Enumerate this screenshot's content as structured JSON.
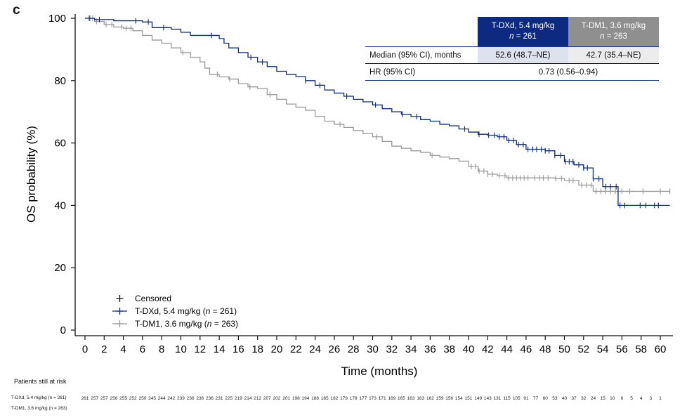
{
  "panel_label": "c",
  "chart_data": {
    "type": "line",
    "step": true,
    "xlabel": "Time (months)",
    "ylabel": "OS probability (%)",
    "xlim": [
      0,
      61
    ],
    "ylim": [
      0,
      100
    ],
    "x_ticks": [
      0,
      2,
      4,
      6,
      8,
      10,
      12,
      14,
      16,
      18,
      20,
      22,
      24,
      26,
      28,
      30,
      32,
      34,
      36,
      38,
      40,
      42,
      44,
      46,
      48,
      50,
      52,
      54,
      56,
      58,
      60
    ],
    "y_ticks": [
      0,
      20,
      40,
      60,
      80,
      100
    ],
    "grid": false,
    "legend_placement": "bottom-left",
    "legend": {
      "censored": "Censored"
    },
    "series": [
      {
        "name": "T-DXd, 5.4 mg/kg (n = 261)",
        "color": "#0d2a80",
        "points": [
          [
            0,
            100
          ],
          [
            1,
            99.6
          ],
          [
            3,
            99.2
          ],
          [
            6,
            98.8
          ],
          [
            7,
            97
          ],
          [
            9,
            96.5
          ],
          [
            10,
            95.5
          ],
          [
            11,
            94.5
          ],
          [
            14,
            93.5
          ],
          [
            14.5,
            92
          ],
          [
            15,
            90.5
          ],
          [
            16,
            89
          ],
          [
            17,
            87.5
          ],
          [
            18,
            86
          ],
          [
            19,
            84.5
          ],
          [
            20,
            83
          ],
          [
            21,
            82
          ],
          [
            22,
            81.3
          ],
          [
            23,
            80
          ],
          [
            24,
            78.5
          ],
          [
            25,
            77
          ],
          [
            26,
            76
          ],
          [
            27,
            75
          ],
          [
            28,
            74
          ],
          [
            29,
            73.2
          ],
          [
            30,
            72.2
          ],
          [
            31,
            71
          ],
          [
            32,
            70
          ],
          [
            33,
            69.2
          ],
          [
            34,
            68.5
          ],
          [
            35,
            67.5
          ],
          [
            36,
            67
          ],
          [
            37,
            66
          ],
          [
            38,
            65.5
          ],
          [
            39,
            64.5
          ],
          [
            40,
            63.5
          ],
          [
            41,
            62.8
          ],
          [
            42,
            62.5
          ],
          [
            43,
            62
          ],
          [
            44,
            60.8
          ],
          [
            45,
            59.5
          ],
          [
            46,
            58
          ],
          [
            48,
            57.5
          ],
          [
            49,
            56
          ],
          [
            50,
            54
          ],
          [
            51,
            53
          ],
          [
            52,
            52
          ],
          [
            53,
            48.5
          ],
          [
            54,
            46
          ],
          [
            55.6,
            40
          ],
          [
            61,
            40
          ]
        ],
        "censored": [
          0.5,
          1.5,
          5.3,
          6.6,
          8.2,
          13.2,
          17.3,
          18.5,
          23,
          24.5,
          27.3,
          30.3,
          33.1,
          34.6,
          39.6,
          41.1,
          42.1,
          42.7,
          43.2,
          43.7,
          44.2,
          44.7,
          45.2,
          45.7,
          46.2,
          46.7,
          47.1,
          47.6,
          48,
          48.4,
          49,
          49.6,
          50.1,
          50.5,
          50.9,
          51.5,
          52,
          52.4,
          53,
          53.6,
          54.3,
          54.8,
          55.4,
          55.8,
          56.3,
          57.9,
          58.5,
          59.4,
          59.8
        ],
        "at_risk": [
          261,
          257,
          257,
          256,
          255,
          252,
          250,
          245,
          244,
          242,
          239,
          236,
          236,
          236,
          231,
          225,
          219,
          214,
          212,
          207,
          202,
          201,
          198,
          194,
          188,
          185,
          182,
          179,
          178,
          177,
          173,
          171,
          169,
          165,
          163,
          163,
          162,
          159,
          156,
          154,
          151,
          149,
          143,
          131,
          115,
          105,
          91,
          77,
          60,
          53,
          40,
          37,
          32,
          24,
          15,
          10,
          6,
          5,
          4,
          3,
          1
        ]
      },
      {
        "name": "T-DM1, 3.6 mg/kg (n = 263)",
        "color": "#999999",
        "points": [
          [
            0,
            100
          ],
          [
            1,
            99
          ],
          [
            2,
            98
          ],
          [
            3,
            97.2
          ],
          [
            4,
            96.8
          ],
          [
            5,
            96
          ],
          [
            6,
            94.5
          ],
          [
            7,
            93
          ],
          [
            8,
            92
          ],
          [
            9,
            90.5
          ],
          [
            10,
            89
          ],
          [
            11,
            87.5
          ],
          [
            12,
            86
          ],
          [
            12.5,
            84
          ],
          [
            13,
            82
          ],
          [
            14,
            81.2
          ],
          [
            15,
            80.5
          ],
          [
            16,
            79
          ],
          [
            17,
            78
          ],
          [
            18,
            77.5
          ],
          [
            19,
            75.5
          ],
          [
            20,
            74
          ],
          [
            21,
            72.5
          ],
          [
            22,
            71.5
          ],
          [
            23,
            70.5
          ],
          [
            24,
            68.5
          ],
          [
            25,
            67
          ],
          [
            26,
            66
          ],
          [
            27,
            65
          ],
          [
            28,
            64
          ],
          [
            29,
            63
          ],
          [
            30,
            62
          ],
          [
            31,
            60.5
          ],
          [
            32,
            59
          ],
          [
            33,
            58.3
          ],
          [
            34,
            57.5
          ],
          [
            35,
            57
          ],
          [
            36,
            56
          ],
          [
            37,
            55.5
          ],
          [
            38,
            55
          ],
          [
            39,
            54.2
          ],
          [
            40,
            52.5
          ],
          [
            41,
            51
          ],
          [
            42,
            50
          ],
          [
            43,
            49.5
          ],
          [
            44,
            48.8
          ],
          [
            49,
            48.6
          ],
          [
            50,
            48
          ],
          [
            51.5,
            46.5
          ],
          [
            53,
            44.5
          ],
          [
            61,
            44.5
          ]
        ],
        "censored": [
          0.4,
          0.8,
          1.2,
          2.2,
          2.8,
          3.8,
          4.3,
          4.8,
          10.2,
          13.8,
          15.1,
          17.2,
          19.3,
          26.6,
          30.4,
          36.2,
          40.3,
          40.7,
          41.1,
          41.6,
          42,
          42.5,
          43.2,
          43.8,
          44.2,
          44.6,
          45,
          45.4,
          45.8,
          46.2,
          46.9,
          47.4,
          47.8,
          48.3,
          49.1,
          49.7,
          50.5,
          50.9,
          51.8,
          52.3,
          52.8,
          53.3,
          53.8,
          54.3,
          54.8,
          55.3,
          56,
          56.8,
          58.2,
          60,
          61
        ]
      }
    ],
    "summary_table": {
      "columns": [
        {
          "label": "T-DXd, 5.4 mg/kg",
          "n_label": "n",
          "n_value": "= 261",
          "color": "#0d2a80",
          "cell_color": "#dde2ee"
        },
        {
          "label": "T-DM1, 3.6 mg/kg",
          "n_label": "n",
          "n_value": "= 263",
          "color": "#8f8f8f",
          "cell_color": "#ececec"
        }
      ],
      "median_label": "Median (95% CI), months",
      "median_values": [
        "52.6 (48.7–NE)",
        "42.7 (35.4–NE)"
      ],
      "hr_label": "HR (95% CI)",
      "hr_value": "0.73 (0.56–0.94)"
    },
    "at_risk_title": "Patients still at risk",
    "at_risk_labels": [
      "T-DXd, 5.4 mg/kg (n = 261)",
      "T-DM1, 3.6 mg/kg (n = 263)"
    ]
  }
}
